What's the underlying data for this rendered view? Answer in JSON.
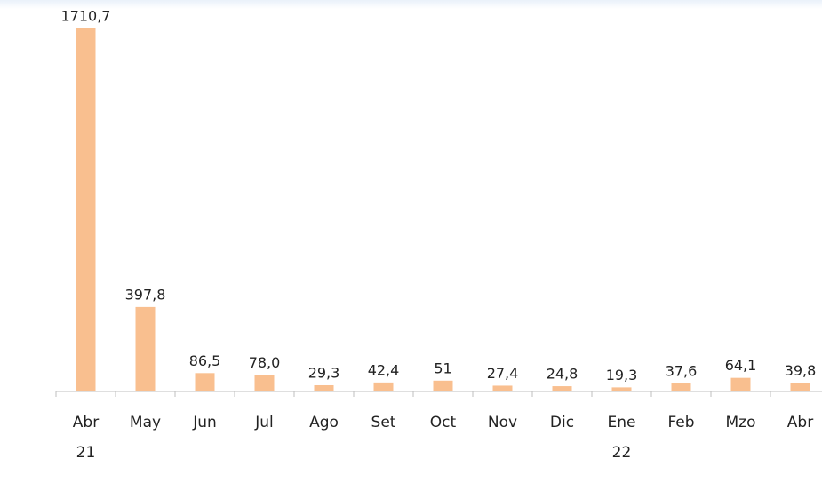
{
  "chart_data": {
    "type": "bar",
    "categories": [
      "Abr\n21",
      "May",
      "Jun",
      "Jul",
      "Ago",
      "Set",
      "Oct",
      "Nov",
      "Dic",
      "Ene\n22",
      "Feb",
      "Mzo",
      "Abr"
    ],
    "values": [
      1710.7,
      397.8,
      86.5,
      78.0,
      29.3,
      42.4,
      51,
      27.4,
      24.8,
      19.3,
      37.6,
      64.1,
      39.8
    ],
    "value_labels": [
      "1710,7",
      "397,8",
      "86,5",
      "78,0",
      "29,3",
      "42,4",
      "51",
      "27,4",
      "24,8",
      "19,3",
      "37,6",
      "64,1",
      "39,8"
    ],
    "color": "#f9bf8f"
  }
}
